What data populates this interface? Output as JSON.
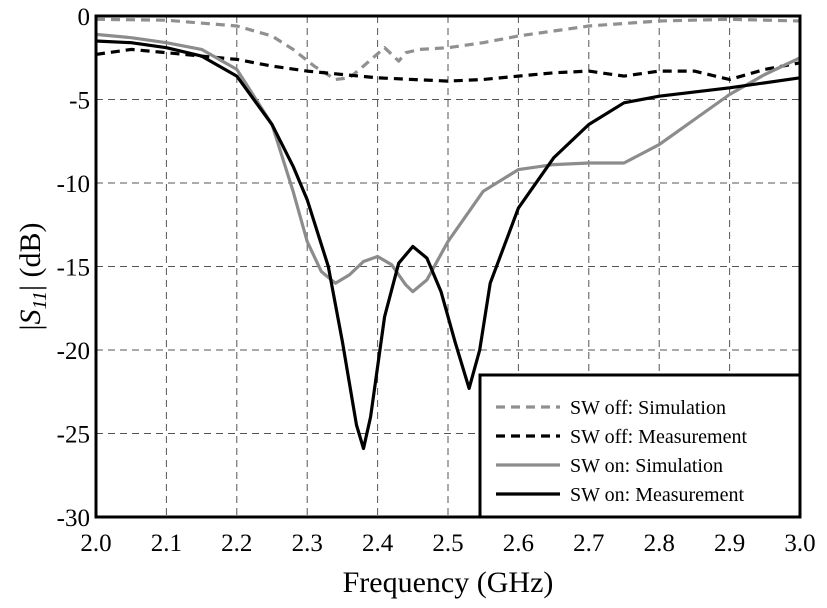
{
  "chart_data": {
    "type": "line",
    "xlabel": "Frequency (GHz)",
    "ylabel_pre": "|",
    "ylabel_var": "S",
    "ylabel_sub": "11",
    "ylabel_post": "| (dB)",
    "xlim": [
      2.0,
      3.0
    ],
    "ylim": [
      -30,
      0
    ],
    "x_ticks": [
      2.0,
      2.1,
      2.2,
      2.3,
      2.4,
      2.5,
      2.6,
      2.7,
      2.8,
      2.9,
      3.0
    ],
    "x_tick_labels": [
      "2.0",
      "2.1",
      "2.2",
      "2.3",
      "2.4",
      "2.5",
      "2.6",
      "2.7",
      "2.8",
      "2.9",
      "3.0"
    ],
    "y_ticks": [
      0,
      -5,
      -10,
      -15,
      -20,
      -25,
      -30
    ],
    "y_tick_labels": [
      "0",
      "-5",
      "-10",
      "-15",
      "-20",
      "-25",
      "-30"
    ],
    "grid": true,
    "legend_position": "bottom-right",
    "series": [
      {
        "name": "SW off: Simulation",
        "color": "#909090",
        "dash": "dashed",
        "x": [
          2.0,
          2.1,
          2.2,
          2.25,
          2.28,
          2.31,
          2.34,
          2.36,
          2.38,
          2.41,
          2.42,
          2.43,
          2.44,
          2.46,
          2.5,
          2.55,
          2.6,
          2.7,
          2.8,
          2.9,
          3.0
        ],
        "y": [
          -0.2,
          -0.25,
          -0.6,
          -1.2,
          -2.0,
          -3.0,
          -3.8,
          -3.7,
          -3.0,
          -1.9,
          -2.3,
          -2.7,
          -2.2,
          -2.0,
          -1.9,
          -1.6,
          -1.2,
          -0.6,
          -0.3,
          -0.2,
          -0.3
        ]
      },
      {
        "name": "SW off: Measurement",
        "color": "#000000",
        "dash": "dashed",
        "x": [
          2.0,
          2.05,
          2.1,
          2.15,
          2.2,
          2.25,
          2.3,
          2.35,
          2.4,
          2.45,
          2.5,
          2.55,
          2.6,
          2.65,
          2.7,
          2.75,
          2.8,
          2.85,
          2.9,
          2.95,
          3.0
        ],
        "y": [
          -2.3,
          -2.0,
          -2.2,
          -2.4,
          -2.6,
          -3.0,
          -3.3,
          -3.5,
          -3.7,
          -3.8,
          -3.9,
          -3.8,
          -3.6,
          -3.4,
          -3.3,
          -3.6,
          -3.3,
          -3.3,
          -3.8,
          -3.2,
          -2.8
        ]
      },
      {
        "name": "SW on: Simulation",
        "color": "#8c8c8c",
        "dash": "solid",
        "x": [
          2.0,
          2.05,
          2.1,
          2.15,
          2.2,
          2.25,
          2.28,
          2.3,
          2.32,
          2.34,
          2.36,
          2.38,
          2.4,
          2.42,
          2.44,
          2.45,
          2.47,
          2.5,
          2.55,
          2.6,
          2.65,
          2.7,
          2.75,
          2.8,
          2.85,
          2.9,
          2.95,
          3.0
        ],
        "y": [
          -1.1,
          -1.3,
          -1.6,
          -2.0,
          -3.2,
          -6.5,
          -10.5,
          -13.5,
          -15.3,
          -16.0,
          -15.5,
          -14.7,
          -14.4,
          -14.9,
          -16.1,
          -16.5,
          -15.8,
          -13.5,
          -10.5,
          -9.2,
          -8.9,
          -8.8,
          -8.8,
          -7.7,
          -6.2,
          -4.7,
          -3.5,
          -2.5
        ]
      },
      {
        "name": "SW on: Measurement",
        "color": "#000000",
        "dash": "solid",
        "x": [
          2.0,
          2.05,
          2.1,
          2.15,
          2.2,
          2.25,
          2.28,
          2.3,
          2.33,
          2.35,
          2.37,
          2.38,
          2.39,
          2.41,
          2.43,
          2.45,
          2.47,
          2.49,
          2.51,
          2.53,
          2.545,
          2.56,
          2.6,
          2.65,
          2.7,
          2.75,
          2.8,
          2.9,
          3.0
        ],
        "y": [
          -1.5,
          -1.6,
          -1.9,
          -2.4,
          -3.6,
          -6.5,
          -9.0,
          -11.0,
          -15.0,
          -19.5,
          -24.5,
          -25.9,
          -24.0,
          -18.0,
          -14.8,
          -13.8,
          -14.5,
          -16.5,
          -19.5,
          -22.3,
          -20.0,
          -16.0,
          -11.5,
          -8.5,
          -6.5,
          -5.2,
          -4.8,
          -4.3,
          -3.7
        ]
      }
    ]
  }
}
